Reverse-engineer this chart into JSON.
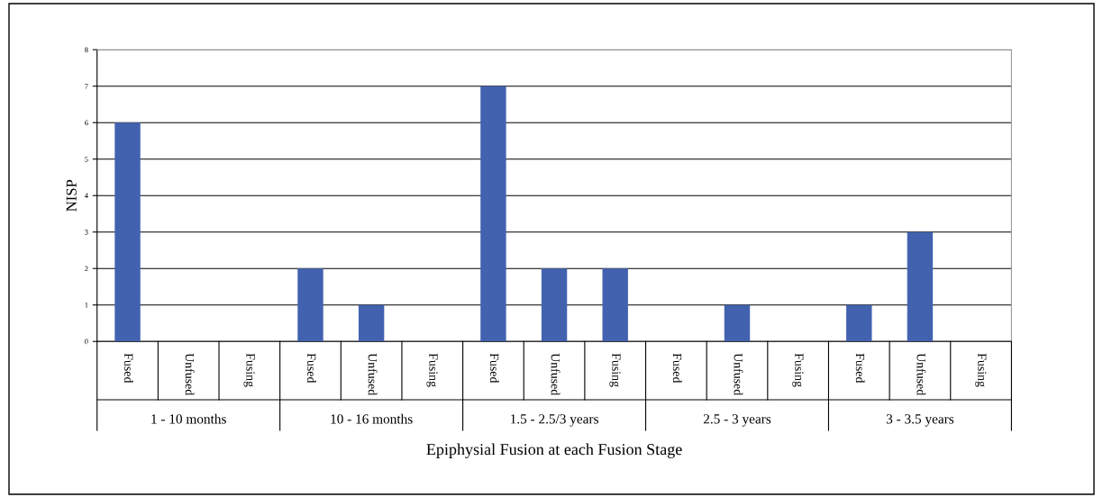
{
  "chart_data": {
    "type": "bar",
    "ylabel": "NISP",
    "xlabel": "Epiphysial Fusion at each Fusion Stage",
    "categories": [
      "Fused",
      "Unfused",
      "Fusing",
      "Fused",
      "Unfused",
      "Fusing",
      "Fused",
      "Unfused",
      "Fusing",
      "Fused",
      "Unfused",
      "Fusing",
      "Fused",
      "Unfused",
      "Fusing"
    ],
    "values": [
      6,
      0,
      0,
      2,
      1,
      0,
      7,
      2,
      2,
      0,
      1,
      0,
      1,
      3,
      0
    ],
    "color": "#4262b0",
    "annotations": [
      "1 - 10 months",
      "10 - 16 months",
      "1.5 - 2.5/3 years",
      "2.5 - 3 years",
      "3 - 3.5 years"
    ],
    "ylim": [
      0,
      8
    ],
    "yticks": [
      0,
      1,
      2,
      3,
      4,
      5,
      6,
      7,
      8
    ],
    "grid": "y",
    "legend": false
  }
}
